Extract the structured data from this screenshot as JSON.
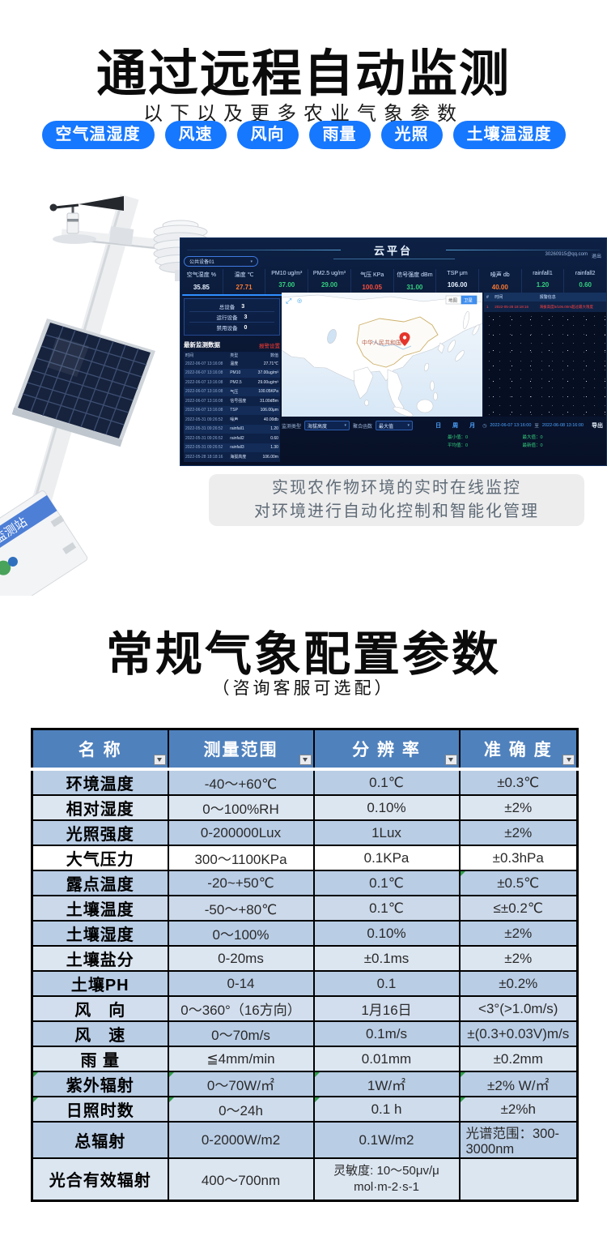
{
  "hero": {
    "title": "通过远程自动监测",
    "subtitle": "以下以及更多农业气象参数",
    "tags": [
      "空气温湿度",
      "风速",
      "风向",
      "雨量",
      "光照",
      "土壤温湿度"
    ]
  },
  "station_label": "监测站",
  "dashboard": {
    "title": "云平台",
    "account": "30260915@qq.com",
    "logout": "退出",
    "device_select": "公共设备01",
    "metrics": [
      {
        "label": "空气湿度 %",
        "value": "35.85",
        "color": "#e8f2ff"
      },
      {
        "label": "温度 ℃",
        "value": "27.71",
        "color": "#ff7a30"
      },
      {
        "label": "PM10 ug/m³",
        "value": "37.00",
        "color": "#35d07f"
      },
      {
        "label": "PM2.5 ug/m³",
        "value": "29.00",
        "color": "#35d07f"
      },
      {
        "label": "气压 KPa",
        "value": "100.05",
        "color": "#ff4d3a"
      },
      {
        "label": "信号强度 dBm",
        "value": "31.00",
        "color": "#35d07f"
      },
      {
        "label": "TSP μm",
        "value": "106.00",
        "color": "#e8f2ff"
      },
      {
        "label": "噪声 db",
        "value": "40.00",
        "color": "#ff7a30"
      },
      {
        "label": "rainfall1",
        "value": "1.20",
        "color": "#35d07f"
      },
      {
        "label": "rainfall2",
        "value": "0.60",
        "color": "#35d07f"
      }
    ],
    "device_stats": [
      {
        "label": "总设备",
        "value": "3"
      },
      {
        "label": "运行设备",
        "value": "3"
      },
      {
        "label": "禁用设备",
        "value": "0"
      }
    ],
    "latest_panel": {
      "title": "最新监测数据",
      "alarm_link": "报警设置",
      "columns": [
        "时间",
        "类型",
        "数值"
      ],
      "rows": [
        [
          "2022-06-07 13:16:08",
          "温度",
          "27.71℃"
        ],
        [
          "2022-06-07 13:16:08",
          "PM10",
          "37.00ug/m³"
        ],
        [
          "2022-06-07 13:16:08",
          "PM2.5",
          "29.00ug/m³"
        ],
        [
          "2022-06-07 13:16:08",
          "气压",
          "100.05KPa"
        ],
        [
          "2022-06-07 13:16:08",
          "信号强度",
          "31.00dBm"
        ],
        [
          "2022-06-07 13:16:08",
          "TSP",
          "106.00μm"
        ],
        [
          "2022-05-31 09:26:52",
          "噪声",
          "40.00db"
        ],
        [
          "2022-05-31 09:26:52",
          "rainfall1",
          "1.20"
        ],
        [
          "2022-05-31 09:26:52",
          "rainfall2",
          "0.60"
        ],
        [
          "2022-05-31 09:26:52",
          "rainfall3",
          "1.30"
        ],
        [
          "2022-05-28 18:18:16",
          "海拔高度",
          "106.00m"
        ]
      ]
    },
    "map": {
      "country_label": "中华人民共和国",
      "btn_map": "地图",
      "btn_satellite": "卫星"
    },
    "alarm_panel": {
      "columns": [
        "#",
        "时间",
        "报警信息"
      ],
      "rows": [
        {
          "no": "1",
          "time": "2022-05-28 18:18:16",
          "msg": "海拔高度5/106.00m超过最大限度"
        }
      ]
    },
    "filter_bar": {
      "type_label": "监测类型",
      "type_value": "海拔高度",
      "agg_label": "聚合函数",
      "agg_value": "最大值",
      "period_day": "日",
      "period_week": "周",
      "period_month": "月",
      "date_from": "2022-06-07 13:16:00",
      "date_sep": "至",
      "date_to": "2022-06-08 13:16:00",
      "export_label": "导出",
      "stats": [
        "最小值：0",
        "最大值：0",
        "平均值：0",
        "最新值：0"
      ]
    }
  },
  "note": {
    "line1": "实现农作物环境的实时在线监控",
    "line2": "对环境进行自动化控制和智能化管理"
  },
  "spec_section": {
    "title": "常规气象配置参数",
    "subtitle": "（咨询客服可选配）",
    "table": {
      "headers": [
        "名  称",
        "测量范围",
        "分 辨 率",
        "准 确 度"
      ],
      "rows": [
        {
          "cells": [
            "环境温度",
            "-40～+60℃",
            "0.1℃",
            "±0.3℃"
          ],
          "bg": "#b9cde5"
        },
        {
          "cells": [
            "相对湿度",
            "0～100%RH",
            "0.10%",
            "±2%"
          ],
          "bg": "#dce6f1"
        },
        {
          "cells": [
            "光照强度",
            "0-200000Lux",
            "1Lux",
            "±2%"
          ],
          "bg": "#b9cde5"
        },
        {
          "cells": [
            "大气压力",
            "300～1100KPa",
            "0.1KPa",
            "±0.3hPa"
          ],
          "bg": "#ffffff"
        },
        {
          "cells": [
            "露点温度",
            "-20~+50℃",
            "0.1℃",
            "±0.5℃"
          ],
          "bg": "#b9cde5",
          "markers": [
            3
          ]
        },
        {
          "cells": [
            "土壤温度",
            "-50～+80℃",
            "0.1℃",
            "≤±0.2℃"
          ],
          "bg": "#ccd9ea"
        },
        {
          "cells": [
            "土壤湿度",
            "0～100%",
            "0.10%",
            "±2%"
          ],
          "bg": "#b9cde5"
        },
        {
          "cells": [
            "土壤盐分",
            "0-20ms",
            "±0.1ms",
            "±2%"
          ],
          "bg": "#dce6f1"
        },
        {
          "cells": [
            "土壤PH",
            "0-14",
            "0.1",
            "±0.2%"
          ],
          "bg": "#b9cde5"
        },
        {
          "cells": [
            "风　向",
            "0～360°（16方向）",
            "1月16日",
            "<3°(>1.0m/s)"
          ],
          "bg": "#d2deee"
        },
        {
          "cells": [
            "风　速",
            "0～70m/s",
            "0.1m/s",
            "±(0.3+0.03V)m/s"
          ],
          "bg": "#b9cde5"
        },
        {
          "cells": [
            "雨 量",
            "≦4mm/min",
            "0.01mm",
            "±0.2mm"
          ],
          "bg": "#dce6f1"
        },
        {
          "cells": [
            "紫外辐射",
            "0～70W/㎡",
            "1W/㎡",
            "±2% W/㎡"
          ],
          "bg": "#b9cde5",
          "markers": [
            0,
            1,
            2,
            3
          ]
        },
        {
          "cells": [
            "日照时数",
            "0～24h",
            "0.1 h",
            "±2%h"
          ],
          "bg": "#cfdcec",
          "markers": [
            0,
            1,
            2,
            3
          ]
        },
        {
          "cells": [
            "总辐射",
            "0-2000W/m2",
            "0.1W/m2",
            "光谱范围：300-3000nm"
          ],
          "bg": "#b9cde5",
          "last_left": true
        },
        {
          "cells": [
            "光合有效辐射",
            "400～700nm",
            "灵敏度: 10～50μv/μ mol·m-2·s-1",
            ""
          ],
          "bg": "#dce6f1",
          "tall": true
        }
      ]
    }
  }
}
